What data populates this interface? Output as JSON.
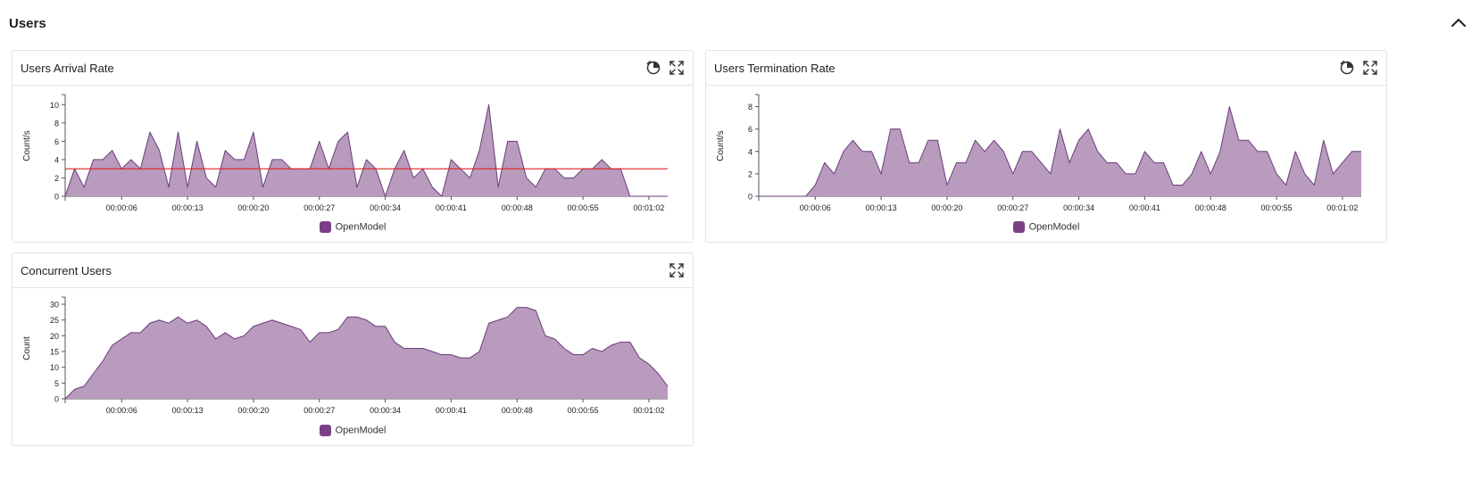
{
  "section": {
    "title": "Users",
    "collapse_icon": "chevron-up-icon"
  },
  "colors": {
    "series_fill": "#b89bbd",
    "series_stroke": "#6a3d7a",
    "legend_swatch": "#7b3f86",
    "threshold": "#e02020",
    "axis": "#555555"
  },
  "panels": {
    "arrival": {
      "title": "Users Arrival Rate",
      "legend": "OpenModel",
      "ylabel": "Count/s"
    },
    "termination": {
      "title": "Users Termination Rate",
      "legend": "OpenModel",
      "ylabel": "Count/s"
    },
    "concurrent": {
      "title": "Concurrent Users",
      "legend": "OpenModel",
      "ylabel": "Count"
    }
  },
  "chart_data": [
    {
      "type": "area",
      "title": "Users Arrival Rate",
      "xlabel": "",
      "ylabel": "Count/s",
      "ylim": [
        0,
        11
      ],
      "yticks": [
        0,
        2,
        4,
        6,
        8,
        10
      ],
      "xlim": [
        0,
        64
      ],
      "xticks": [
        6,
        13,
        20,
        27,
        34,
        41,
        48,
        55,
        62
      ],
      "xtick_labels": [
        "00:00:06",
        "00:00:13",
        "00:00:20",
        "00:00:27",
        "00:00:34",
        "00:00:41",
        "00:00:48",
        "00:00:55",
        "00:01:02"
      ],
      "reference_line": 3,
      "series": [
        {
          "name": "OpenModel",
          "x": [
            0,
            1,
            2,
            3,
            4,
            5,
            6,
            7,
            8,
            9,
            10,
            11,
            12,
            13,
            14,
            15,
            16,
            17,
            18,
            19,
            20,
            21,
            22,
            23,
            24,
            25,
            26,
            27,
            28,
            29,
            30,
            31,
            32,
            33,
            34,
            35,
            36,
            37,
            38,
            39,
            40,
            41,
            42,
            43,
            44,
            45,
            46,
            47,
            48,
            49,
            50,
            51,
            52,
            53,
            54,
            55,
            56,
            57,
            58,
            59,
            60,
            61,
            62,
            63,
            64
          ],
          "values": [
            0,
            3,
            1,
            4,
            4,
            5,
            3,
            4,
            3,
            7,
            5,
            1,
            7,
            1,
            6,
            2,
            1,
            5,
            4,
            4,
            7,
            1,
            4,
            4,
            3,
            3,
            3,
            6,
            3,
            6,
            7,
            1,
            4,
            3,
            0,
            3,
            5,
            2,
            3,
            1,
            0,
            4,
            3,
            2,
            5,
            10,
            1,
            6,
            6,
            2,
            1,
            3,
            3,
            2,
            2,
            3,
            3,
            4,
            3,
            3,
            0,
            0,
            0,
            0,
            0
          ]
        }
      ],
      "legend": "bottom"
    },
    {
      "type": "area",
      "title": "Users Termination Rate",
      "xlabel": "",
      "ylabel": "Count/s",
      "ylim": [
        0,
        9
      ],
      "yticks": [
        0,
        2,
        4,
        6,
        8
      ],
      "xlim": [
        0,
        64
      ],
      "xticks": [
        6,
        13,
        20,
        27,
        34,
        41,
        48,
        55,
        62
      ],
      "xtick_labels": [
        "00:00:06",
        "00:00:13",
        "00:00:20",
        "00:00:27",
        "00:00:34",
        "00:00:41",
        "00:00:48",
        "00:00:55",
        "00:01:02"
      ],
      "series": [
        {
          "name": "OpenModel",
          "x": [
            0,
            1,
            2,
            3,
            4,
            5,
            6,
            7,
            8,
            9,
            10,
            11,
            12,
            13,
            14,
            15,
            16,
            17,
            18,
            19,
            20,
            21,
            22,
            23,
            24,
            25,
            26,
            27,
            28,
            29,
            30,
            31,
            32,
            33,
            34,
            35,
            36,
            37,
            38,
            39,
            40,
            41,
            42,
            43,
            44,
            45,
            46,
            47,
            48,
            49,
            50,
            51,
            52,
            53,
            54,
            55,
            56,
            57,
            58,
            59,
            60,
            61,
            62,
            63,
            64
          ],
          "values": [
            0,
            0,
            0,
            0,
            0,
            0,
            1,
            3,
            2,
            4,
            5,
            4,
            4,
            2,
            6,
            6,
            3,
            3,
            5,
            5,
            1,
            3,
            3,
            5,
            4,
            5,
            4,
            2,
            4,
            4,
            3,
            2,
            6,
            3,
            5,
            6,
            4,
            3,
            3,
            2,
            2,
            4,
            3,
            3,
            1,
            1,
            2,
            4,
            2,
            4,
            8,
            5,
            5,
            4,
            4,
            2,
            1,
            4,
            2,
            1,
            5,
            2,
            3,
            4,
            4
          ]
        }
      ],
      "legend": "bottom"
    },
    {
      "type": "area",
      "title": "Concurrent Users",
      "xlabel": "",
      "ylabel": "Count",
      "ylim": [
        0,
        32
      ],
      "yticks": [
        0,
        5,
        10,
        15,
        20,
        25,
        30
      ],
      "xlim": [
        0,
        64
      ],
      "xticks": [
        6,
        13,
        20,
        27,
        34,
        41,
        48,
        55,
        62
      ],
      "xtick_labels": [
        "00:00:06",
        "00:00:13",
        "00:00:20",
        "00:00:27",
        "00:00:34",
        "00:00:41",
        "00:00:48",
        "00:00:55",
        "00:01:02"
      ],
      "series": [
        {
          "name": "OpenModel",
          "x": [
            0,
            1,
            2,
            3,
            4,
            5,
            6,
            7,
            8,
            9,
            10,
            11,
            12,
            13,
            14,
            15,
            16,
            17,
            18,
            19,
            20,
            21,
            22,
            23,
            24,
            25,
            26,
            27,
            28,
            29,
            30,
            31,
            32,
            33,
            34,
            35,
            36,
            37,
            38,
            39,
            40,
            41,
            42,
            43,
            44,
            45,
            46,
            47,
            48,
            49,
            50,
            51,
            52,
            53,
            54,
            55,
            56,
            57,
            58,
            59,
            60,
            61,
            62,
            63,
            64
          ],
          "values": [
            0,
            3,
            4,
            8,
            12,
            17,
            19,
            21,
            21,
            24,
            25,
            24,
            26,
            24,
            25,
            23,
            19,
            21,
            19,
            20,
            23,
            24,
            25,
            24,
            23,
            22,
            18,
            21,
            21,
            22,
            26,
            26,
            25,
            23,
            23,
            18,
            16,
            16,
            16,
            15,
            14,
            14,
            13,
            13,
            15,
            24,
            25,
            26,
            29,
            29,
            28,
            20,
            19,
            16,
            14,
            14,
            16,
            15,
            17,
            18,
            18,
            13,
            11,
            8,
            4
          ]
        }
      ],
      "legend": "bottom"
    }
  ]
}
